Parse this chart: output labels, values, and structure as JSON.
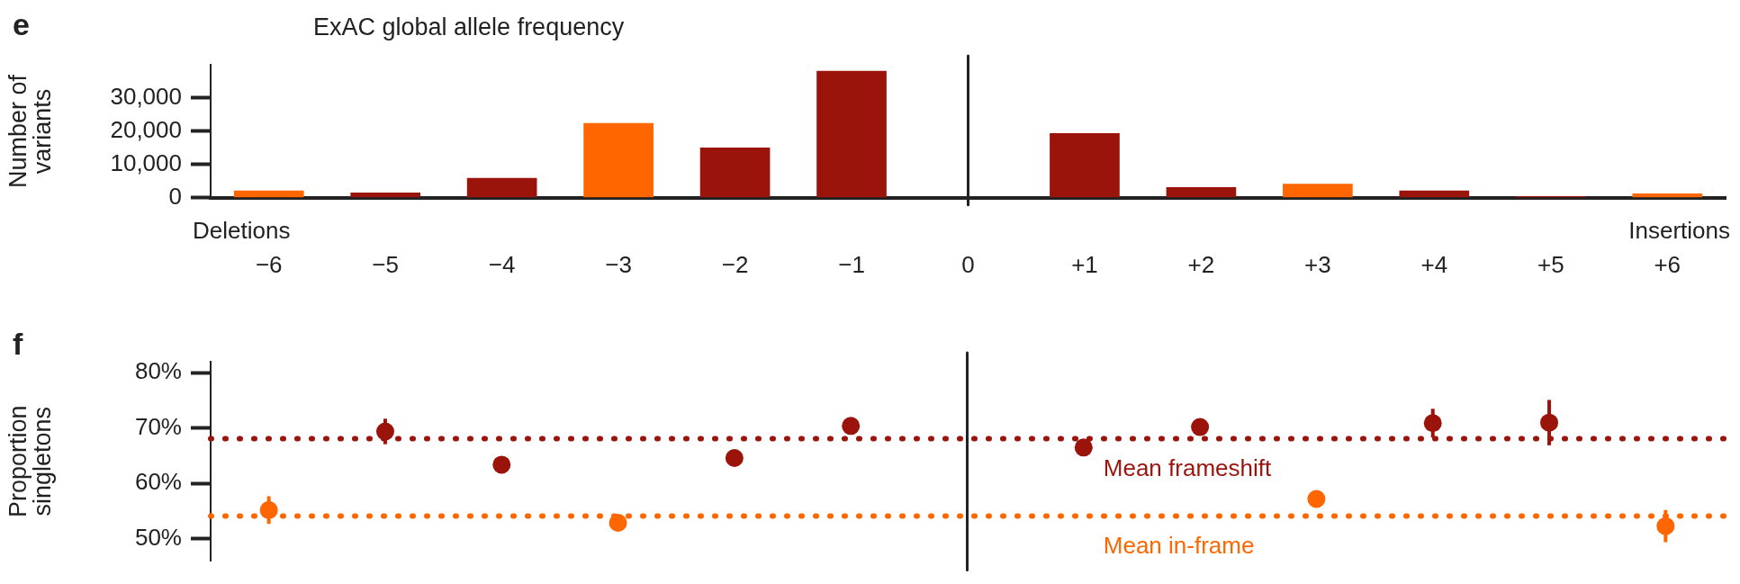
{
  "chart_data": [
    {
      "type": "bar",
      "title": "ExAC global allele frequency",
      "ylabel": "Number of variants",
      "categories": [
        "−6",
        "−5",
        "−4",
        "−3",
        "−2",
        "−1",
        "0",
        "+1",
        "+2",
        "+3",
        "+4",
        "+5",
        "+6"
      ],
      "values": [
        2200,
        1600,
        6000,
        22500,
        15100,
        38200,
        null,
        19400,
        3200,
        4200,
        2200,
        500,
        1300
      ],
      "colors": [
        "#ff6600",
        "#9b140c",
        "#9b140c",
        "#ff6600",
        "#9b140c",
        "#9b140c",
        "#9b140c",
        "#9b140c",
        "#9b140c",
        "#ff6600",
        "#9b140c",
        "#9b140c",
        "#ff6600"
      ],
      "ylim": [
        0,
        40000
      ],
      "yticks": [
        0,
        {
          "value": 10000,
          "label": "10,000"
        },
        {
          "value": 20000,
          "label": "20,000"
        },
        {
          "value": 30000,
          "label": "30,000"
        }
      ],
      "ref_lines": [
        {
          "axis": "x",
          "value": "0",
          "color": "#222222"
        }
      ],
      "annotations": [
        "e",
        "Deletions",
        "Insertions"
      ],
      "grid": false,
      "legend": false
    },
    {
      "type": "scatter",
      "ylabel": "Proportion singletons",
      "categories": [
        "−6",
        "−5",
        "−4",
        "−3",
        "−2",
        "−1",
        "0",
        "+1",
        "+2",
        "+3",
        "+4",
        "+5",
        "+6"
      ],
      "tick_labels": "y",
      "series": [
        {
          "color": "#9b140c",
          "values": [
            null,
            69.4,
            63.4,
            null,
            64.6,
            70.4,
            null,
            66.5,
            70.2,
            null,
            70.9,
            71.0,
            null
          ],
          "errors": [
            null,
            2.3,
            null,
            null,
            null,
            null,
            null,
            null,
            1.0,
            null,
            2.6,
            4.1,
            null
          ]
        },
        {
          "color": "#ff6600",
          "values": [
            55.2,
            null,
            null,
            52.9,
            null,
            null,
            null,
            null,
            null,
            57.2,
            null,
            null,
            52.3
          ],
          "errors": [
            2.5,
            null,
            null,
            null,
            null,
            null,
            null,
            null,
            null,
            1.0,
            null,
            null,
            2.9
          ]
        }
      ],
      "ylim": [
        46,
        82
      ],
      "yticks": [
        {
          "value": 50,
          "label": "50%"
        },
        {
          "value": 60,
          "label": "60%"
        },
        {
          "value": 70,
          "label": "70%"
        },
        {
          "value": 80,
          "label": "80%"
        }
      ],
      "ref_lines": [
        {
          "axis": "x",
          "value": "0",
          "color": "#222222"
        },
        {
          "axis": "y",
          "value": 68.1,
          "label": "Mean frameshift",
          "color": "#9b140c",
          "line_style": "dotted"
        },
        {
          "axis": "y",
          "value": 54.1,
          "label": "Mean in-frame",
          "color": "#ff6600",
          "line_style": "dotted"
        }
      ],
      "annotations": [
        "f"
      ],
      "marker": "circle",
      "grid": false,
      "legend": false
    }
  ]
}
